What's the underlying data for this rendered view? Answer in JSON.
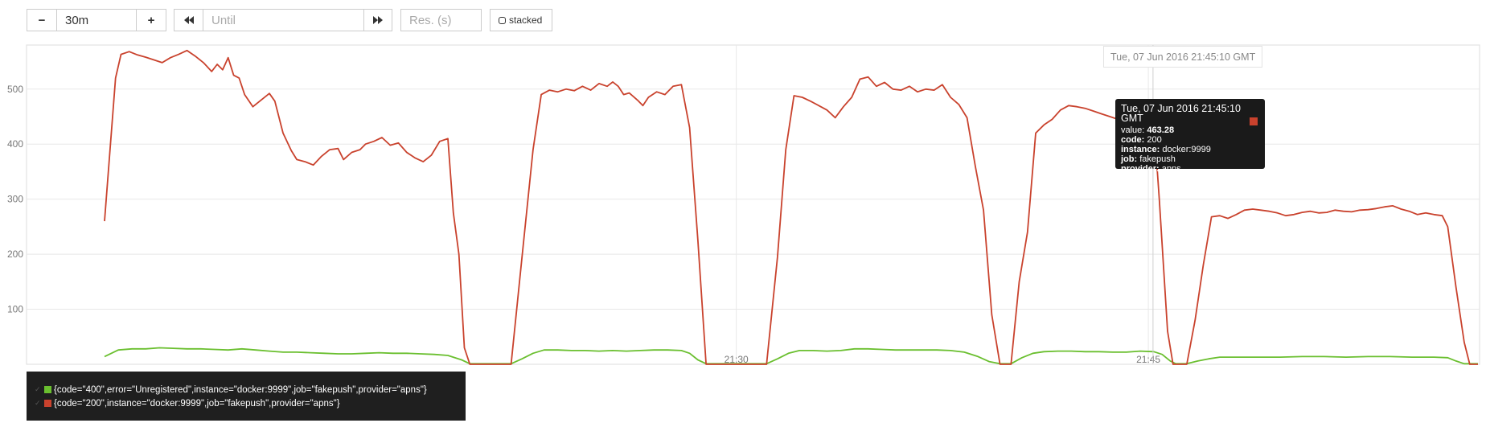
{
  "controls": {
    "minus_label": "−",
    "range_value": "30m",
    "plus_label": "+",
    "back_icon": "double-left-arrow",
    "until_placeholder": "Until",
    "forward_icon": "double-right-arrow",
    "res_placeholder": "Res. (s)",
    "stacked_label": "stacked"
  },
  "tooltip": {
    "time": "Tue, 07 Jun 2016 21:45:10 GMT",
    "value_label": "value:",
    "value": "463.28",
    "rows": [
      {
        "k": "code:",
        "v": "200"
      },
      {
        "k": "instance:",
        "v": "docker:9999"
      },
      {
        "k": "job:",
        "v": "fakepush"
      },
      {
        "k": "provider:",
        "v": "apns"
      }
    ],
    "color": "#c9422d"
  },
  "hover_time": "Tue, 07 Jun 2016 21:45:10 GMT",
  "legend": [
    {
      "label": "{code=\"400\",error=\"Unregistered\",instance=\"docker:9999\",job=\"fakepush\",provider=\"apns\"}",
      "color": "#6abf2f"
    },
    {
      "label": "{code=\"200\",instance=\"docker:9999\",job=\"fakepush\",provider=\"apns\"}",
      "color": "#c9422d"
    }
  ],
  "chart_data": {
    "type": "line",
    "ylim": [
      0,
      580
    ],
    "yticks": [
      100,
      200,
      300,
      400,
      500
    ],
    "xlim": [
      0,
      50
    ],
    "xticks": [
      {
        "x": 23,
        "label": "21:30"
      },
      {
        "x": 38,
        "label": "21:45"
      }
    ],
    "hover_x": 38.17,
    "hover_y": 463.28,
    "grid": true,
    "series": [
      {
        "color": "#c9422d",
        "points": [
          [
            0,
            260
          ],
          [
            0.4,
            520
          ],
          [
            0.6,
            563
          ],
          [
            0.9,
            568
          ],
          [
            1.2,
            562
          ],
          [
            1.5,
            558
          ],
          [
            1.8,
            553
          ],
          [
            2.1,
            548
          ],
          [
            2.4,
            557
          ],
          [
            2.7,
            563
          ],
          [
            3.0,
            570
          ],
          [
            3.3,
            560
          ],
          [
            3.6,
            548
          ],
          [
            3.9,
            532
          ],
          [
            4.1,
            545
          ],
          [
            4.3,
            535
          ],
          [
            4.5,
            557
          ],
          [
            4.7,
            525
          ],
          [
            4.9,
            520
          ],
          [
            5.1,
            490
          ],
          [
            5.4,
            468
          ],
          [
            5.7,
            480
          ],
          [
            6.0,
            492
          ],
          [
            6.2,
            478
          ],
          [
            6.5,
            420
          ],
          [
            6.8,
            388
          ],
          [
            7.0,
            372
          ],
          [
            7.3,
            368
          ],
          [
            7.6,
            362
          ],
          [
            7.9,
            378
          ],
          [
            8.2,
            390
          ],
          [
            8.5,
            392
          ],
          [
            8.7,
            372
          ],
          [
            9.0,
            385
          ],
          [
            9.3,
            390
          ],
          [
            9.5,
            400
          ],
          [
            9.8,
            405
          ],
          [
            10.1,
            412
          ],
          [
            10.4,
            398
          ],
          [
            10.7,
            402
          ],
          [
            11.0,
            385
          ],
          [
            11.3,
            375
          ],
          [
            11.6,
            368
          ],
          [
            11.9,
            380
          ],
          [
            12.2,
            405
          ],
          [
            12.5,
            410
          ],
          [
            12.7,
            275
          ],
          [
            12.9,
            200
          ],
          [
            13.1,
            30
          ],
          [
            13.3,
            0
          ],
          [
            14.8,
            0
          ],
          [
            15.2,
            195
          ],
          [
            15.6,
            390
          ],
          [
            15.9,
            490
          ],
          [
            16.2,
            498
          ],
          [
            16.5,
            495
          ],
          [
            16.8,
            500
          ],
          [
            17.1,
            497
          ],
          [
            17.4,
            505
          ],
          [
            17.7,
            498
          ],
          [
            18.0,
            510
          ],
          [
            18.3,
            505
          ],
          [
            18.5,
            513
          ],
          [
            18.7,
            505
          ],
          [
            18.9,
            490
          ],
          [
            19.1,
            493
          ],
          [
            19.4,
            480
          ],
          [
            19.6,
            470
          ],
          [
            19.8,
            485
          ],
          [
            20.1,
            495
          ],
          [
            20.4,
            490
          ],
          [
            20.7,
            505
          ],
          [
            21.0,
            508
          ],
          [
            21.3,
            430
          ],
          [
            21.6,
            225
          ],
          [
            21.9,
            0
          ],
          [
            24.1,
            0
          ],
          [
            24.5,
            195
          ],
          [
            24.8,
            390
          ],
          [
            25.1,
            488
          ],
          [
            25.4,
            485
          ],
          [
            25.7,
            478
          ],
          [
            26.0,
            470
          ],
          [
            26.3,
            462
          ],
          [
            26.6,
            448
          ],
          [
            26.9,
            468
          ],
          [
            27.2,
            485
          ],
          [
            27.5,
            518
          ],
          [
            27.8,
            522
          ],
          [
            28.1,
            505
          ],
          [
            28.4,
            512
          ],
          [
            28.7,
            500
          ],
          [
            29.0,
            498
          ],
          [
            29.3,
            505
          ],
          [
            29.6,
            495
          ],
          [
            29.9,
            500
          ],
          [
            30.2,
            498
          ],
          [
            30.5,
            508
          ],
          [
            30.8,
            485
          ],
          [
            31.1,
            472
          ],
          [
            31.4,
            448
          ],
          [
            31.7,
            360
          ],
          [
            32.0,
            280
          ],
          [
            32.3,
            90
          ],
          [
            32.6,
            0
          ],
          [
            33.0,
            0
          ],
          [
            33.3,
            150
          ],
          [
            33.6,
            240
          ],
          [
            33.9,
            420
          ],
          [
            34.2,
            435
          ],
          [
            34.5,
            445
          ],
          [
            34.8,
            462
          ],
          [
            35.1,
            470
          ],
          [
            35.4,
            468
          ],
          [
            35.7,
            465
          ],
          [
            36.0,
            460
          ],
          [
            36.3,
            455
          ],
          [
            36.6,
            450
          ],
          [
            36.9,
            445
          ],
          [
            37.1,
            412
          ],
          [
            37.4,
            410
          ],
          [
            37.7,
            422
          ],
          [
            38.0,
            435
          ],
          [
            38.17,
            463.28
          ],
          [
            38.4,
            300
          ],
          [
            38.7,
            60
          ],
          [
            38.9,
            0
          ],
          [
            39.4,
            0
          ],
          [
            39.7,
            80
          ],
          [
            40.0,
            180
          ],
          [
            40.3,
            268
          ],
          [
            40.6,
            270
          ],
          [
            40.9,
            265
          ],
          [
            41.2,
            272
          ],
          [
            41.5,
            280
          ],
          [
            41.8,
            282
          ],
          [
            42.1,
            280
          ],
          [
            42.4,
            278
          ],
          [
            42.7,
            275
          ],
          [
            43.0,
            270
          ],
          [
            43.3,
            272
          ],
          [
            43.6,
            276
          ],
          [
            43.9,
            278
          ],
          [
            44.2,
            275
          ],
          [
            44.5,
            276
          ],
          [
            44.8,
            280
          ],
          [
            45.1,
            278
          ],
          [
            45.4,
            277
          ],
          [
            45.7,
            280
          ],
          [
            46.0,
            281
          ],
          [
            46.3,
            283
          ],
          [
            46.6,
            286
          ],
          [
            46.9,
            288
          ],
          [
            47.2,
            282
          ],
          [
            47.5,
            278
          ],
          [
            47.8,
            272
          ],
          [
            48.1,
            275
          ],
          [
            48.4,
            272
          ],
          [
            48.7,
            270
          ],
          [
            48.9,
            250
          ],
          [
            49.2,
            140
          ],
          [
            49.5,
            40
          ],
          [
            49.7,
            0
          ],
          [
            50,
            0
          ]
        ]
      },
      {
        "color": "#6abf2f",
        "points": [
          [
            0,
            14
          ],
          [
            0.5,
            26
          ],
          [
            1.0,
            28
          ],
          [
            1.5,
            28
          ],
          [
            2.0,
            30
          ],
          [
            2.5,
            29
          ],
          [
            3.0,
            28
          ],
          [
            3.5,
            28
          ],
          [
            4.0,
            27
          ],
          [
            4.5,
            26
          ],
          [
            5.0,
            28
          ],
          [
            5.5,
            26
          ],
          [
            6.0,
            24
          ],
          [
            6.5,
            22
          ],
          [
            7.0,
            22
          ],
          [
            7.5,
            21
          ],
          [
            8.0,
            20
          ],
          [
            8.5,
            19
          ],
          [
            9.0,
            19
          ],
          [
            9.5,
            20
          ],
          [
            10.0,
            21
          ],
          [
            10.5,
            20
          ],
          [
            11.0,
            20
          ],
          [
            11.5,
            19
          ],
          [
            12.0,
            18
          ],
          [
            12.5,
            16
          ],
          [
            13.0,
            8
          ],
          [
            13.3,
            1
          ],
          [
            14.8,
            1
          ],
          [
            15.2,
            10
          ],
          [
            15.6,
            20
          ],
          [
            16.0,
            26
          ],
          [
            16.5,
            26
          ],
          [
            17.0,
            25
          ],
          [
            17.5,
            25
          ],
          [
            18.0,
            24
          ],
          [
            18.5,
            25
          ],
          [
            19.0,
            24
          ],
          [
            19.5,
            25
          ],
          [
            20.0,
            26
          ],
          [
            20.5,
            26
          ],
          [
            21.0,
            25
          ],
          [
            21.3,
            20
          ],
          [
            21.6,
            8
          ],
          [
            21.9,
            1
          ],
          [
            24.1,
            1
          ],
          [
            24.5,
            10
          ],
          [
            24.9,
            20
          ],
          [
            25.3,
            25
          ],
          [
            25.8,
            25
          ],
          [
            26.3,
            24
          ],
          [
            26.8,
            25
          ],
          [
            27.3,
            28
          ],
          [
            27.8,
            28
          ],
          [
            28.3,
            27
          ],
          [
            28.8,
            26
          ],
          [
            29.3,
            26
          ],
          [
            29.8,
            26
          ],
          [
            30.3,
            26
          ],
          [
            30.8,
            25
          ],
          [
            31.3,
            22
          ],
          [
            31.8,
            14
          ],
          [
            32.2,
            5
          ],
          [
            32.6,
            1
          ],
          [
            33.0,
            1
          ],
          [
            33.4,
            12
          ],
          [
            33.8,
            20
          ],
          [
            34.2,
            23
          ],
          [
            34.7,
            24
          ],
          [
            35.2,
            24
          ],
          [
            35.7,
            23
          ],
          [
            36.2,
            23
          ],
          [
            36.7,
            22
          ],
          [
            37.2,
            22
          ],
          [
            37.7,
            24
          ],
          [
            38.2,
            23
          ],
          [
            38.5,
            18
          ],
          [
            38.8,
            6
          ],
          [
            39.0,
            1
          ],
          [
            39.4,
            1
          ],
          [
            39.8,
            6
          ],
          [
            40.2,
            10
          ],
          [
            40.6,
            13
          ],
          [
            41.2,
            13
          ],
          [
            42.0,
            13
          ],
          [
            42.8,
            13
          ],
          [
            43.6,
            14
          ],
          [
            44.4,
            14
          ],
          [
            45.2,
            13
          ],
          [
            46.0,
            14
          ],
          [
            46.8,
            14
          ],
          [
            47.6,
            13
          ],
          [
            48.4,
            13
          ],
          [
            48.9,
            12
          ],
          [
            49.2,
            6
          ],
          [
            49.5,
            1
          ],
          [
            50,
            1
          ]
        ]
      }
    ]
  }
}
